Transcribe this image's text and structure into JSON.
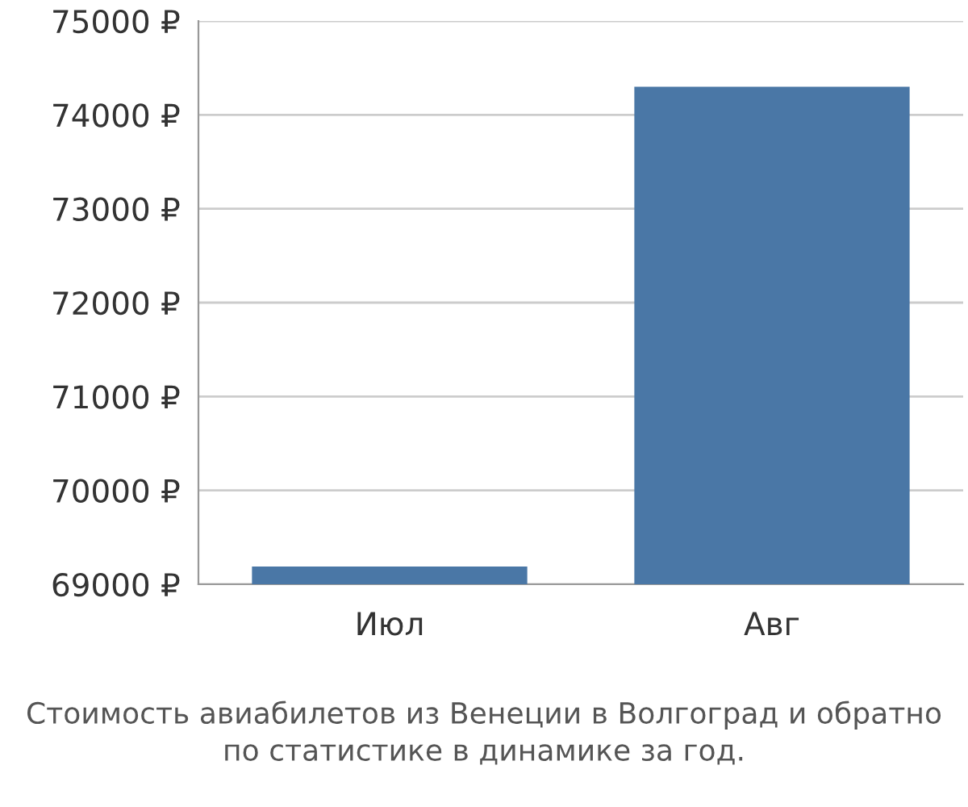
{
  "chart_data": {
    "type": "bar",
    "categories": [
      "Июл",
      "Авг"
    ],
    "values": [
      69190,
      74300
    ],
    "color": "#4a77a6",
    "ylim": [
      69000,
      75000
    ],
    "yticks": [
      {
        "value": 69000,
        "label": "69000 ₽"
      },
      {
        "value": 70000,
        "label": "70000 ₽"
      },
      {
        "value": 71000,
        "label": "71000 ₽"
      },
      {
        "value": 72000,
        "label": "72000 ₽"
      },
      {
        "value": 73000,
        "label": "73000 ₽"
      },
      {
        "value": 74000,
        "label": "74000 ₽"
      },
      {
        "value": 75000,
        "label": "75000 ₽"
      }
    ],
    "grid": "y",
    "annotations": [
      "Стоимость авиабилетов из Венеции в Волгоград и обратно\nпо статистике в динамике за год."
    ]
  }
}
